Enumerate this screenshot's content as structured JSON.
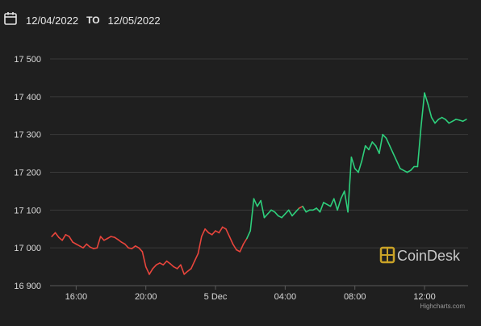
{
  "header": {
    "start_date": "12/04/2022",
    "to_label": "TO",
    "end_date": "12/05/2022"
  },
  "icons": {
    "date_picker": "calendar-icon"
  },
  "watermark": {
    "text": "CoinDesk",
    "logo": "coindesk-logo",
    "color": "#c9a227"
  },
  "credit": "Highcharts.com",
  "colors": {
    "up": "#2ecf7c",
    "down": "#e8453c",
    "grid": "#3a3a3a",
    "background": "#1f1f1f"
  },
  "chart_data": {
    "type": "line",
    "title": "",
    "xlabel": "",
    "ylabel": "",
    "ylim": [
      16900,
      17500
    ],
    "yticks": [
      16900,
      17000,
      17100,
      17200,
      17300,
      17400,
      17500
    ],
    "ytick_labels": [
      "16 900",
      "17 000",
      "17 100",
      "17 200",
      "17 300",
      "17 400",
      "17 500"
    ],
    "xlim": [
      14.5,
      38.5
    ],
    "xticks": [
      16,
      20,
      24,
      28,
      32,
      36
    ],
    "xtick_labels": [
      "16:00",
      "20:00",
      "5 Dec",
      "04:00",
      "08:00",
      "12:00"
    ],
    "x_unit": "hours since 12/04/2022 00:00",
    "grid": true,
    "legend": "none",
    "series": [
      {
        "color_rule": "red while below 17 030 in early period, green after recovery",
        "x": [
          14.6,
          14.8,
          15.0,
          15.2,
          15.4,
          15.6,
          15.8,
          16.0,
          16.2,
          16.4,
          16.6,
          16.8,
          17.0,
          17.2,
          17.4,
          17.6,
          17.8,
          18.0,
          18.2,
          18.4,
          18.6,
          18.8,
          19.0,
          19.2,
          19.4,
          19.6,
          19.8,
          20.0,
          20.2,
          20.4,
          20.6,
          20.8,
          21.0,
          21.2,
          21.4,
          21.6,
          21.8,
          22.0,
          22.2,
          22.4,
          22.6,
          22.8,
          23.0,
          23.2,
          23.4,
          23.6,
          23.8,
          24.0,
          24.2,
          24.4,
          24.6,
          24.8,
          25.0,
          25.2,
          25.4,
          25.6,
          25.8,
          26.0,
          26.2,
          26.4,
          26.6,
          26.8,
          27.0,
          27.2,
          27.4,
          27.6,
          27.8,
          28.0,
          28.2,
          28.4,
          28.6,
          28.8,
          29.0,
          29.2,
          29.4,
          29.6,
          29.8,
          30.0,
          30.2,
          30.4,
          30.6,
          30.8,
          31.0,
          31.2,
          31.4,
          31.6,
          31.8,
          32.0,
          32.2,
          32.4,
          32.6,
          32.8,
          33.0,
          33.2,
          33.4,
          33.6,
          33.8,
          34.0,
          34.2,
          34.4,
          34.6,
          34.8,
          35.0,
          35.2,
          35.4,
          35.6,
          35.8,
          36.0,
          36.2,
          36.4,
          36.6,
          36.8,
          37.0,
          37.2,
          37.4,
          37.6,
          37.8,
          38.0,
          38.2,
          38.4
        ],
        "y": [
          17030,
          17040,
          17028,
          17020,
          17035,
          17030,
          17015,
          17010,
          17005,
          17000,
          17010,
          17002,
          16998,
          17000,
          17030,
          17020,
          17025,
          17030,
          17028,
          17022,
          17015,
          17010,
          17000,
          16998,
          17005,
          17000,
          16990,
          16950,
          16930,
          16945,
          16955,
          16960,
          16955,
          16965,
          16958,
          16950,
          16945,
          16955,
          16930,
          16938,
          16945,
          16965,
          16985,
          17030,
          17050,
          17040,
          17035,
          17045,
          17040,
          17055,
          17050,
          17030,
          17010,
          16995,
          16990,
          17010,
          17025,
          17045,
          17130,
          17110,
          17125,
          17080,
          17090,
          17100,
          17095,
          17085,
          17080,
          17090,
          17100,
          17085,
          17095,
          17105,
          17110,
          17095,
          17100,
          17100,
          17105,
          17095,
          17120,
          17115,
          17110,
          17130,
          17100,
          17130,
          17150,
          17095,
          17240,
          17210,
          17200,
          17230,
          17270,
          17260,
          17280,
          17270,
          17250,
          17300,
          17290,
          17270,
          17250,
          17230,
          17210,
          17205,
          17200,
          17205,
          17215,
          17215,
          17320,
          17410,
          17380,
          17345,
          17330,
          17340,
          17345,
          17340,
          17330,
          17335,
          17340,
          17338,
          17335,
          17340
        ]
      }
    ]
  }
}
